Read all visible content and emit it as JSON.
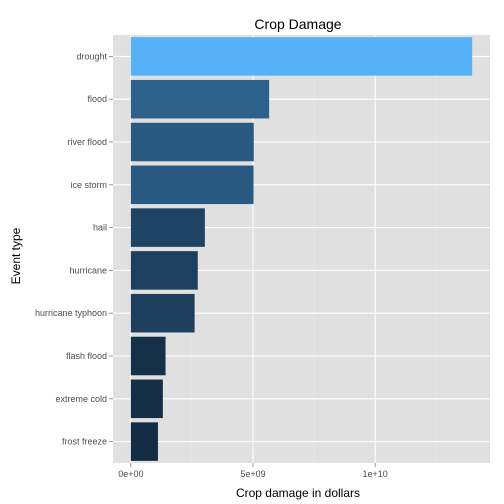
{
  "chart_data": {
    "type": "bar",
    "orientation": "horizontal",
    "title": "Crop Damage",
    "xlabel": "Crop damage in dollars",
    "ylabel": "Event type",
    "categories": [
      "drought",
      "flood",
      "river flood",
      "ice storm",
      "hail",
      "hurricane",
      "hurricane typhoon",
      "flash flood",
      "extreme cold",
      "frost freeze"
    ],
    "values": [
      13970000000,
      5660000000,
      5030000000,
      5020000000,
      3030000000,
      2740000000,
      2610000000,
      1420000000,
      1310000000,
      1110000000
    ],
    "xlim": [
      -730000000,
      14700000000
    ],
    "x_ticks": [
      {
        "value": 0,
        "label": "0e+00"
      },
      {
        "value": 5000000000,
        "label": "5e+09"
      },
      {
        "value": 10000000000,
        "label": "1e+10"
      }
    ],
    "grid": true,
    "legend": "none",
    "colors": {
      "panel_background": "#e0e0e0",
      "grid_major": "#ffffff",
      "grid_minor": "#ebebeb",
      "bar_low": "#132b43",
      "bar_high": "#56b1f7"
    }
  }
}
